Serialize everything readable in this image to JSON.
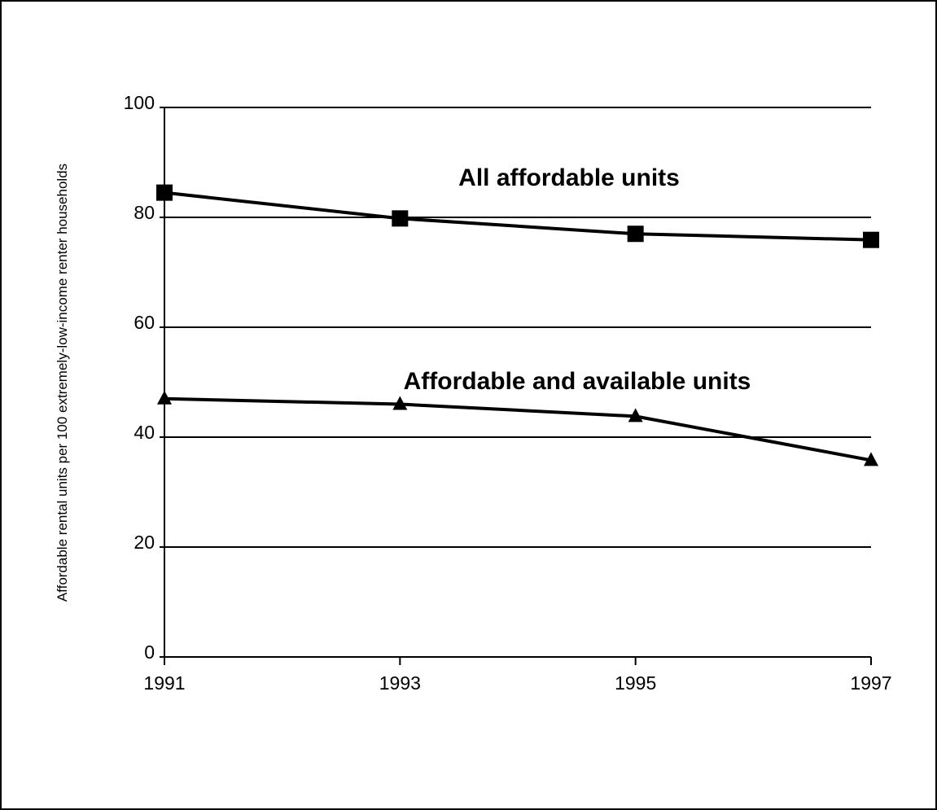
{
  "chart_data": {
    "type": "line",
    "title": "",
    "xlabel": "",
    "ylabel": "Affordable rental units per 100 extremely-low-income renter households",
    "x": [
      "1991",
      "1993",
      "1995",
      "1997"
    ],
    "ylim": [
      0,
      100
    ],
    "yticks": [
      "0",
      "20",
      "40",
      "60",
      "80",
      "100"
    ],
    "grid": "horizontal",
    "legend": "none",
    "series": [
      {
        "name": "All affordable units",
        "values": [
          84.5,
          79.8,
          77,
          75.9
        ],
        "marker": "square",
        "color": "#000000"
      },
      {
        "name": "Affordable and available units",
        "values": [
          47,
          46,
          43.8,
          35.8
        ],
        "marker": "triangle",
        "color": "#000000"
      }
    ]
  }
}
